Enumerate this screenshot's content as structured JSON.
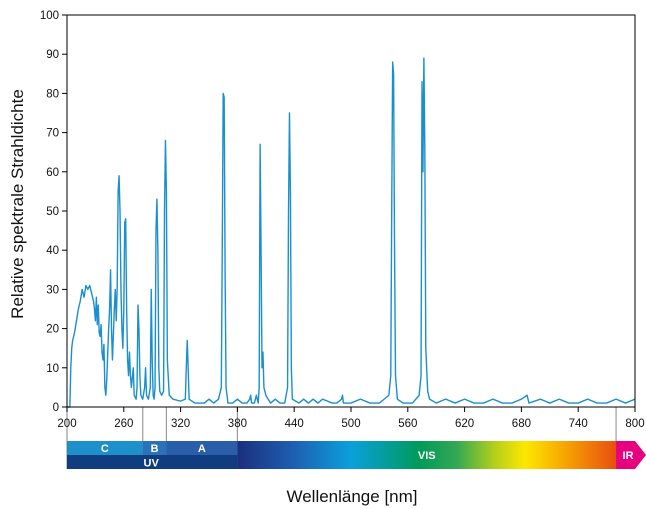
{
  "chart_data": {
    "type": "line",
    "title": "",
    "xlabel": "Wellenlänge [nm]",
    "ylabel": "Relative spektrale Strahldichte",
    "xlim": [
      200,
      800
    ],
    "ylim": [
      0,
      100
    ],
    "x_ticks": [
      "200",
      "260",
      "320",
      "380",
      "440",
      "500",
      "560",
      "620",
      "680",
      "740",
      "800"
    ],
    "y_ticks": [
      "0",
      "10",
      "20",
      "30",
      "40",
      "50",
      "60",
      "70",
      "80",
      "90",
      "100"
    ],
    "grid": false,
    "line_color": "#1a8fd0",
    "series": [
      {
        "points": [
          [
            200,
            0
          ],
          [
            203,
            0
          ],
          [
            204,
            10
          ],
          [
            205,
            15
          ],
          [
            206,
            17
          ],
          [
            208,
            19
          ],
          [
            210,
            22
          ],
          [
            212,
            25
          ],
          [
            214,
            27
          ],
          [
            216,
            30
          ],
          [
            218,
            28
          ],
          [
            220,
            31
          ],
          [
            222,
            30
          ],
          [
            224,
            31
          ],
          [
            226,
            29
          ],
          [
            228,
            27
          ],
          [
            229,
            25
          ],
          [
            230,
            22
          ],
          [
            231,
            28
          ],
          [
            232,
            21
          ],
          [
            233,
            26
          ],
          [
            234,
            19
          ],
          [
            235,
            18
          ],
          [
            236,
            21
          ],
          [
            237,
            14
          ],
          [
            238,
            12
          ],
          [
            239,
            16
          ],
          [
            240,
            5
          ],
          [
            241,
            3
          ],
          [
            242,
            7
          ],
          [
            244,
            20
          ],
          [
            245,
            25
          ],
          [
            246,
            35
          ],
          [
            247,
            20
          ],
          [
            248,
            12
          ],
          [
            250,
            25
          ],
          [
            251,
            30
          ],
          [
            252,
            22
          ],
          [
            253,
            30
          ],
          [
            254,
            55
          ],
          [
            255,
            59
          ],
          [
            256,
            50
          ],
          [
            257,
            30
          ],
          [
            258,
            20
          ],
          [
            259,
            15
          ],
          [
            260,
            25
          ],
          [
            261,
            47
          ],
          [
            262,
            48
          ],
          [
            263,
            25
          ],
          [
            264,
            12
          ],
          [
            265,
            8
          ],
          [
            266,
            14
          ],
          [
            267,
            8
          ],
          [
            268,
            5
          ],
          [
            270,
            10
          ],
          [
            271,
            3
          ],
          [
            273,
            2
          ],
          [
            274,
            5
          ],
          [
            275,
            26
          ],
          [
            276,
            20
          ],
          [
            277,
            8
          ],
          [
            278,
            3
          ],
          [
            280,
            2
          ],
          [
            282,
            5
          ],
          [
            283,
            10
          ],
          [
            284,
            3
          ],
          [
            286,
            2
          ],
          [
            288,
            5
          ],
          [
            289,
            30
          ],
          [
            290,
            12
          ],
          [
            291,
            3
          ],
          [
            292,
            2
          ],
          [
            293,
            5
          ],
          [
            294,
            45
          ],
          [
            295,
            53
          ],
          [
            296,
            40
          ],
          [
            297,
            10
          ],
          [
            298,
            4
          ],
          [
            300,
            3
          ],
          [
            302,
            4
          ],
          [
            303,
            50
          ],
          [
            304,
            68
          ],
          [
            305,
            55
          ],
          [
            306,
            12
          ],
          [
            308,
            3
          ],
          [
            312,
            2
          ],
          [
            320,
            1.5
          ],
          [
            325,
            2
          ],
          [
            326,
            10
          ],
          [
            327,
            17
          ],
          [
            328,
            10
          ],
          [
            329,
            2
          ],
          [
            335,
            1
          ],
          [
            345,
            1
          ],
          [
            350,
            2
          ],
          [
            355,
            1
          ],
          [
            360,
            2
          ],
          [
            363,
            5
          ],
          [
            364,
            40
          ],
          [
            365,
            80
          ],
          [
            366,
            79
          ],
          [
            367,
            35
          ],
          [
            368,
            5
          ],
          [
            370,
            1
          ],
          [
            375,
            1
          ],
          [
            380,
            2
          ],
          [
            385,
            1
          ],
          [
            390,
            1
          ],
          [
            393,
            2
          ],
          [
            394,
            3
          ],
          [
            395,
            1
          ],
          [
            398,
            1
          ],
          [
            400,
            3
          ],
          [
            402,
            1
          ],
          [
            403,
            5
          ],
          [
            404,
            67
          ],
          [
            405,
            40
          ],
          [
            406,
            10
          ],
          [
            407,
            14
          ],
          [
            408,
            5
          ],
          [
            409,
            4
          ],
          [
            410,
            3
          ],
          [
            415,
            1
          ],
          [
            420,
            2
          ],
          [
            425,
            1
          ],
          [
            430,
            1
          ],
          [
            433,
            5
          ],
          [
            434,
            50
          ],
          [
            435,
            75
          ],
          [
            436,
            55
          ],
          [
            437,
            10
          ],
          [
            438,
            2
          ],
          [
            445,
            1
          ],
          [
            450,
            2
          ],
          [
            455,
            1
          ],
          [
            460,
            2
          ],
          [
            465,
            1
          ],
          [
            470,
            2
          ],
          [
            480,
            1
          ],
          [
            485,
            1
          ],
          [
            490,
            2
          ],
          [
            491,
            3
          ],
          [
            492,
            1
          ],
          [
            500,
            1
          ],
          [
            510,
            2
          ],
          [
            520,
            1
          ],
          [
            530,
            1
          ],
          [
            540,
            3
          ],
          [
            542,
            8
          ],
          [
            543,
            50
          ],
          [
            544,
            88
          ],
          [
            545,
            85
          ],
          [
            546,
            40
          ],
          [
            547,
            8
          ],
          [
            549,
            2
          ],
          [
            555,
            1
          ],
          [
            565,
            1
          ],
          [
            572,
            3
          ],
          [
            574,
            8
          ],
          [
            575,
            83
          ],
          [
            576,
            60
          ],
          [
            577,
            89
          ],
          [
            578,
            65
          ],
          [
            579,
            15
          ],
          [
            581,
            4
          ],
          [
            583,
            2
          ],
          [
            590,
            1
          ],
          [
            600,
            2
          ],
          [
            610,
            1
          ],
          [
            620,
            2
          ],
          [
            630,
            1
          ],
          [
            640,
            1
          ],
          [
            650,
            2
          ],
          [
            660,
            1
          ],
          [
            670,
            1
          ],
          [
            680,
            2
          ],
          [
            686,
            3
          ],
          [
            688,
            1
          ],
          [
            700,
            2
          ],
          [
            710,
            1
          ],
          [
            720,
            2
          ],
          [
            730,
            1
          ],
          [
            740,
            1
          ],
          [
            750,
            2
          ],
          [
            760,
            1
          ],
          [
            770,
            1
          ],
          [
            780,
            2
          ],
          [
            790,
            1
          ],
          [
            800,
            2
          ]
        ]
      }
    ],
    "bands": {
      "uv": {
        "label": "UV",
        "range": [
          200,
          380
        ],
        "color": "#0f3d7f",
        "sub": [
          {
            "label": "C",
            "range": [
              200,
              280
            ],
            "color": "#1d8fc9"
          },
          {
            "label": "B",
            "range": [
              280,
              305
            ],
            "color": "#2c72b9"
          },
          {
            "label": "A",
            "range": [
              305,
              380
            ],
            "color": "#2a5ea8"
          }
        ]
      },
      "vis": {
        "label": "VIS",
        "range": [
          380,
          780
        ]
      },
      "ir": {
        "label": "IR",
        "range": [
          780,
          800
        ],
        "color": "#e6007e"
      }
    }
  }
}
